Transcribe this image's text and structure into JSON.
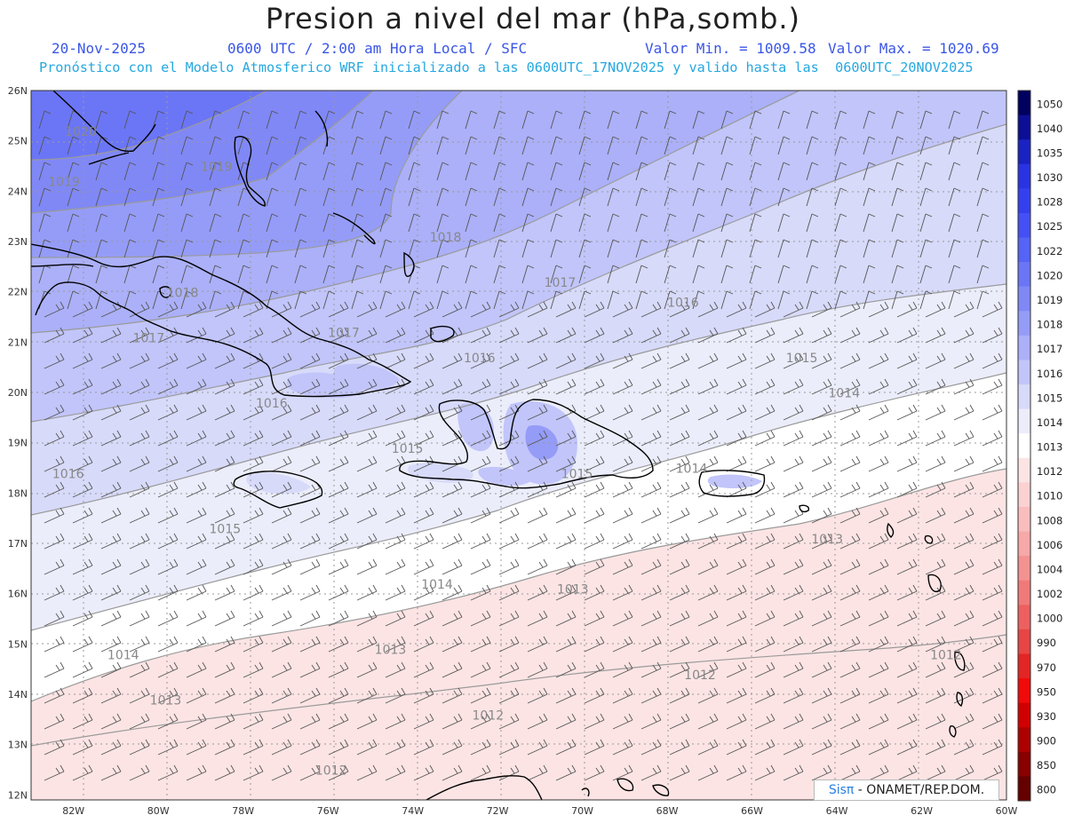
{
  "title": "Presion a nivel del mar (hPa,somb.)",
  "header": {
    "date": "20-Nov-2025",
    "time": "0600 UTC / 2:00 am Hora Local / SFC",
    "min_label": "Valor Min. = 1009.58",
    "max_label": "Valor Max. = 1020.69",
    "forecast": "Pronóstico con el Modelo Atmosferico WRF inicializado a las 0600UTC_17NOV2025 y valido hasta las  0600UTC_20NOV2025"
  },
  "map": {
    "lat_labels": [
      "26N",
      "25N",
      "24N",
      "23N",
      "22N",
      "21N",
      "20N",
      "19N",
      "18N",
      "17N",
      "16N",
      "15N",
      "14N",
      "13N",
      "12N"
    ],
    "lon_labels": [
      "82W",
      "80W",
      "78W",
      "76W",
      "74W",
      "72W",
      "70W",
      "68W",
      "66W",
      "64W",
      "62W",
      "60W"
    ],
    "contours": [
      {
        "label": "1020",
        "lon": -82.2,
        "lat": 25.1
      },
      {
        "label": "1019",
        "lon": -79.0,
        "lat": 24.4
      },
      {
        "label": "1019",
        "lon": -82.6,
        "lat": 24.1
      },
      {
        "label": "1018",
        "lon": -73.6,
        "lat": 23.0
      },
      {
        "label": "1018",
        "lon": -79.8,
        "lat": 21.9
      },
      {
        "label": "1017",
        "lon": -70.9,
        "lat": 22.1
      },
      {
        "label": "1017",
        "lon": -80.6,
        "lat": 21.0
      },
      {
        "label": "1017",
        "lon": -76.0,
        "lat": 21.1
      },
      {
        "label": "1016",
        "lon": -68.0,
        "lat": 21.7
      },
      {
        "label": "1016",
        "lon": -72.8,
        "lat": 20.6
      },
      {
        "label": "1016",
        "lon": -77.7,
        "lat": 19.7
      },
      {
        "label": "1016",
        "lon": -82.5,
        "lat": 18.3
      },
      {
        "label": "1015",
        "lon": -65.2,
        "lat": 20.6
      },
      {
        "label": "1015",
        "lon": -74.5,
        "lat": 18.8
      },
      {
        "label": "1015",
        "lon": -70.5,
        "lat": 18.3
      },
      {
        "label": "1015",
        "lon": -78.8,
        "lat": 17.2
      },
      {
        "label": "1014",
        "lon": -64.2,
        "lat": 19.9
      },
      {
        "label": "1014",
        "lon": -67.8,
        "lat": 18.4
      },
      {
        "label": "1014",
        "lon": -73.8,
        "lat": 16.1
      },
      {
        "label": "1014",
        "lon": -81.2,
        "lat": 14.7
      },
      {
        "label": "1013",
        "lon": -64.6,
        "lat": 17.0
      },
      {
        "label": "1013",
        "lon": -70.6,
        "lat": 16.0
      },
      {
        "label": "1013",
        "lon": -74.9,
        "lat": 14.8
      },
      {
        "label": "1013",
        "lon": -80.2,
        "lat": 13.8
      },
      {
        "label": "1012",
        "lon": -61.8,
        "lat": 14.7
      },
      {
        "label": "1012",
        "lon": -67.6,
        "lat": 14.3
      },
      {
        "label": "1012",
        "lon": -72.6,
        "lat": 13.5
      },
      {
        "label": "1012",
        "lon": -76.3,
        "lat": 12.4
      }
    ]
  },
  "colorbar": {
    "levels": [
      "1050",
      "1040",
      "1035",
      "1030",
      "1028",
      "1025",
      "1022",
      "1020",
      "1019",
      "1018",
      "1017",
      "1016",
      "1015",
      "1014",
      "1013",
      "1012",
      "1010",
      "1008",
      "1006",
      "1004",
      "1002",
      "1000",
      "990",
      "970",
      "950",
      "930",
      "900",
      "850",
      "800"
    ],
    "colors": [
      "#00005e",
      "#0c0f96",
      "#1a22c2",
      "#2a33e2",
      "#3440ee",
      "#4450f4",
      "#5563f6",
      "#6b76f6",
      "#8088f6",
      "#959cf7",
      "#abb0f8",
      "#c1c5fa",
      "#d7daf9",
      "#ebedfb",
      "#ffffff",
      "#fde4e4",
      "#fbd1d1",
      "#f9bdbd",
      "#f7a8a8",
      "#f49292",
      "#f07a7a",
      "#ec6060",
      "#e84545",
      "#e32525",
      "#f00a0a",
      "#d10000",
      "#ad0000",
      "#890000",
      "#650000"
    ]
  },
  "credit": {
    "sis": "Sisπ",
    "rest": " - ONAMET/REP.DOM."
  }
}
